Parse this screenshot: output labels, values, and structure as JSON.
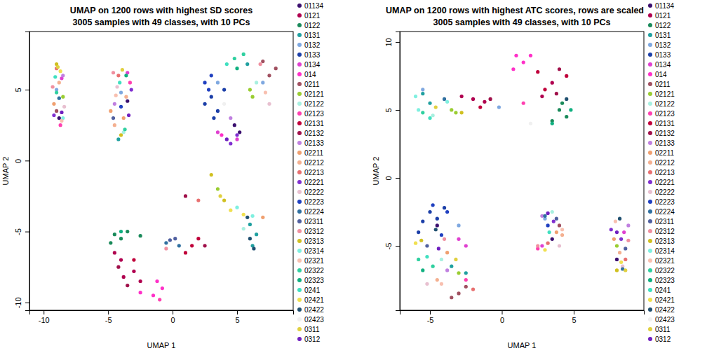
{
  "chart_data": [
    {
      "type": "scatter",
      "title": "UMAP on 1200 rows with highest SD scores",
      "subtitle": "3005 samples with 49 classes, with 10 PCs",
      "xlabel": "UMAP 1",
      "ylabel": "UMAP 2",
      "xlim": [
        -11.1,
        9.35
      ],
      "ylim": [
        -10.55,
        9.1
      ],
      "xticks": [
        -10,
        -5,
        0,
        5
      ],
      "yticks": [
        -10,
        -5,
        0,
        5
      ],
      "marker": "circle",
      "series": [
        {
          "name": "01134",
          "color": "#3b0f6f",
          "x": [
            4.8,
            5.2,
            -3.5,
            -8.8
          ],
          "y": [
            2.5,
            2.0,
            4.2,
            3.0
          ]
        },
        {
          "name": "0121",
          "color": "#b0004f",
          "x": [
            -4.0,
            -3.0,
            -4.5,
            -2.5,
            -3.8
          ],
          "y": [
            -7.0,
            -7.8,
            -6.5,
            -8.5,
            -8.2
          ]
        },
        {
          "name": "0122",
          "color": "#1a8a5a",
          "x": [
            -4.5,
            -3.5,
            -2.5,
            -4.8,
            -4.0
          ],
          "y": [
            -5.2,
            -5.0,
            -5.3,
            -5.8,
            -5.5
          ]
        },
        {
          "name": "0131",
          "color": "#20a0a0",
          "x": [
            6.0,
            6.5,
            5.8,
            -4.2,
            6.2
          ],
          "y": [
            -4.5,
            -5.2,
            6.8,
            1.5,
            -6.0
          ]
        },
        {
          "name": "0132",
          "color": "#7fa8e0",
          "x": [
            3.5,
            -9.0,
            -4.0,
            7.0
          ],
          "y": [
            5.5,
            5.0,
            4.8,
            5.5
          ]
        },
        {
          "name": "0133",
          "color": "#1c3fa8",
          "x": [
            3.0,
            2.5,
            3.5,
            4.0,
            3.2
          ],
          "y": [
            4.5,
            4.0,
            3.5,
            5.0,
            3.0
          ]
        },
        {
          "name": "0134",
          "color": "#e040d0",
          "x": [
            -3.5,
            -8.6,
            5.0,
            3.5
          ],
          "y": [
            6.2,
            5.8,
            1.5,
            2.0
          ]
        },
        {
          "name": "014",
          "color": "#ff30c8",
          "x": [
            -1.5,
            -0.8,
            -2.5,
            -1.2,
            3.8
          ],
          "y": [
            -9.5,
            -9.0,
            -9.3,
            -8.5,
            1.8
          ]
        },
        {
          "name": "0211",
          "color": "#a05060",
          "x": [
            7.5,
            8.0,
            7.0,
            -9.0
          ],
          "y": [
            6.0,
            6.5,
            7.0,
            3.5
          ]
        },
        {
          "name": "02121",
          "color": "#9acd32",
          "x": [
            6.0,
            6.2,
            3.5,
            -8.5
          ],
          "y": [
            5.0,
            4.5,
            -2.0,
            4.5
          ]
        },
        {
          "name": "02122",
          "color": "#a8f0e0",
          "x": [
            5.5,
            -3.8,
            6.5
          ],
          "y": [
            -4.8,
            2.0,
            5.5
          ]
        },
        {
          "name": "02123",
          "color": "#ff40b0",
          "x": [
            -1.0,
            -3.3,
            -8.7
          ],
          "y": [
            -9.8,
            5.5,
            2.5
          ]
        },
        {
          "name": "02131",
          "color": "#c0003a",
          "x": [
            1.5,
            2.0,
            -3.0,
            1.0
          ],
          "y": [
            -6.0,
            -5.5,
            -7.0,
            -6.5
          ]
        },
        {
          "name": "02132",
          "color": "#a0104a",
          "x": [
            2.5,
            -4.2,
            1.0,
            -3.5
          ],
          "y": [
            -6.0,
            -7.5,
            -2.5,
            -8.8
          ]
        },
        {
          "name": "02133",
          "color": "#c080e0",
          "x": [
            -8.5,
            4.5,
            -4.5
          ],
          "y": [
            6.0,
            3.0,
            4.0
          ]
        },
        {
          "name": "02211",
          "color": "#f0a070",
          "x": [
            -4.8,
            -9.2,
            -3.8,
            7.0
          ],
          "y": [
            3.5,
            4.0,
            3.0,
            -4.0
          ]
        },
        {
          "name": "02212",
          "color": "#f4b090",
          "x": [
            -4.5,
            -8.8,
            -3.6
          ],
          "y": [
            2.5,
            5.5,
            4.5
          ]
        },
        {
          "name": "02213",
          "color": "#e87070",
          "x": [
            -9.0,
            -4.2,
            2.0
          ],
          "y": [
            6.5,
            6.0,
            -2.8
          ]
        },
        {
          "name": "02221",
          "color": "#8030d0",
          "x": [
            4.5,
            5.0,
            -9.2,
            -3.2
          ],
          "y": [
            1.2,
            1.8,
            3.2,
            5.0
          ]
        },
        {
          "name": "02222",
          "color": "#e8c0d0",
          "x": [
            -8.4,
            -4.3,
            7.5
          ],
          "y": [
            3.8,
            5.2,
            4.0
          ]
        },
        {
          "name": "02223",
          "color": "#2040c0",
          "x": [
            2.8,
            3.0,
            -4.0,
            2.5
          ],
          "y": [
            5.0,
            6.0,
            3.8,
            5.5
          ]
        },
        {
          "name": "02224",
          "color": "#3070a0",
          "x": [
            -0.5,
            0.5,
            -8.8
          ],
          "y": [
            -5.8,
            -6.0,
            4.4
          ]
        },
        {
          "name": "02311",
          "color": "#5060a0",
          "x": [
            -0.2,
            0.2,
            -4.6
          ],
          "y": [
            -5.6,
            -5.5,
            3.0
          ]
        },
        {
          "name": "02312",
          "color": "#f090a0",
          "x": [
            -9.3,
            -4.6,
            -0.5,
            6.8
          ],
          "y": [
            5.2,
            6.2,
            -6.2,
            6.8
          ]
        },
        {
          "name": "02313",
          "color": "#d0c020",
          "x": [
            -9.0,
            3.0,
            4.0,
            -4.0
          ],
          "y": [
            6.8,
            -1.0,
            -2.8,
            1.8
          ]
        },
        {
          "name": "02314",
          "color": "#80f0e0",
          "x": [
            6.2,
            5.0,
            -8.5
          ],
          "y": [
            -3.9,
            -3.3,
            3.0
          ]
        },
        {
          "name": "02321",
          "color": "#f8c0b0",
          "x": [
            -8.6,
            -4.4,
            7.2
          ],
          "y": [
            2.8,
            4.6,
            4.8
          ]
        },
        {
          "name": "02322",
          "color": "#30d0a0",
          "x": [
            5.5,
            4.8,
            -9.0,
            -3.7
          ],
          "y": [
            7.5,
            7.2,
            4.8,
            2.2
          ]
        },
        {
          "name": "02323",
          "color": "#10b080",
          "x": [
            -3.6,
            5.0,
            -4.0
          ],
          "y": [
            6.0,
            6.5,
            -5.0
          ]
        },
        {
          "name": "0241",
          "color": "#40e0c0",
          "x": [
            -9.1,
            -4.1,
            4.2
          ],
          "y": [
            5.9,
            5.5,
            6.8
          ]
        },
        {
          "name": "02421",
          "color": "#f0e050",
          "x": [
            -8.7,
            4.5,
            5.5
          ],
          "y": [
            6.3,
            -3.5,
            -3.8
          ]
        },
        {
          "name": "02422",
          "color": "#205070",
          "x": [
            6.0,
            6.3,
            5.8
          ],
          "y": [
            -5.5,
            -6.2,
            -4.0
          ]
        },
        {
          "name": "02423",
          "color": "#f0f0f0",
          "x": [
            4.0
          ],
          "y": [
            4.0
          ]
        },
        {
          "name": "0311",
          "color": "#e0d040",
          "x": [
            -3.9,
            -8.9,
            3.7
          ],
          "y": [
            6.4,
            6.6,
            -2.5
          ]
        },
        {
          "name": "0312",
          "color": "#7020c0",
          "x": [
            4.2,
            -8.6,
            -3.4
          ],
          "y": [
            1.5,
            3.4,
            3.2
          ]
        }
      ]
    },
    {
      "type": "scatter",
      "title": "UMAP on 1200 rows with highest ATC scores, rows are scaled",
      "subtitle": "3005 samples with 49 classes, with 10 PCs",
      "xlabel": "UMAP 1",
      "ylabel": "UMAP 2",
      "xlim": [
        -7.1,
        9.88
      ],
      "ylim": [
        -9.74,
        10.77
      ],
      "xticks": [
        -5,
        0,
        5
      ],
      "yticks": [
        -5,
        0,
        5,
        10
      ],
      "marker": "circle",
      "series": [
        {
          "name": "01134",
          "color": "#3b0f6f",
          "x": [
            8.0,
            3.5,
            -4.5
          ],
          "y": [
            -6.0,
            -4.5,
            -3.5
          ]
        },
        {
          "name": "0121",
          "color": "#b0004f",
          "x": [
            -2.0,
            -1.2,
            3.5,
            2.8,
            -2.8
          ],
          "y": [
            5.8,
            5.6,
            7.0,
            6.0,
            6.0
          ]
        },
        {
          "name": "0122",
          "color": "#1a8a5a",
          "x": [
            4.0,
            4.5,
            3.5,
            4.2
          ],
          "y": [
            5.0,
            4.5,
            4.2,
            5.5
          ]
        },
        {
          "name": "0131",
          "color": "#20a0a0",
          "x": [
            -5.5,
            -5.0,
            -3.5,
            -2.5
          ],
          "y": [
            6.2,
            5.5,
            -6.5,
            -7.0
          ]
        },
        {
          "name": "0132",
          "color": "#7fa8e0",
          "x": [
            -3.0,
            -5.5,
            3.0,
            -0.2
          ],
          "y": [
            -3.5,
            6.5,
            -3.0,
            5.2
          ]
        },
        {
          "name": "0133",
          "color": "#1c3fa8",
          "x": [
            -5.0,
            -4.5,
            -5.5,
            -4.0,
            -5.8
          ],
          "y": [
            -2.5,
            -3.0,
            -3.2,
            -2.2,
            -4.0
          ]
        },
        {
          "name": "0134",
          "color": "#e040d0",
          "x": [
            -3.0,
            -2.5,
            2.8,
            8.5
          ],
          "y": [
            -4.5,
            -5.0,
            -5.0,
            -4.0
          ]
        },
        {
          "name": "014",
          "color": "#ff30c8",
          "x": [
            1.0,
            1.5,
            0.8,
            2.0
          ],
          "y": [
            9.0,
            8.5,
            8.0,
            9.0
          ]
        },
        {
          "name": "0211",
          "color": "#a05060",
          "x": [
            -3.0,
            -3.5,
            -2.5,
            4.0
          ],
          "y": [
            -8.5,
            -8.8,
            -8.0,
            -3.5
          ]
        },
        {
          "name": "02121",
          "color": "#9acd32",
          "x": [
            -3.5,
            -3.2,
            -3.0,
            8.0
          ],
          "y": [
            5.0,
            4.8,
            -7.0,
            -5.0
          ]
        },
        {
          "name": "02122",
          "color": "#a8f0e0",
          "x": [
            -4.8,
            -4.2,
            3.5
          ],
          "y": [
            4.6,
            -6.0,
            -2.5
          ]
        },
        {
          "name": "02123",
          "color": "#ff40b0",
          "x": [
            -2.5,
            1.5,
            2.5
          ],
          "y": [
            -7.5,
            5.5,
            -5.2
          ]
        },
        {
          "name": "02131",
          "color": "#c0003a",
          "x": [
            3.0,
            4.5,
            -1.5,
            2.5
          ],
          "y": [
            6.5,
            7.5,
            5.2,
            7.8
          ]
        },
        {
          "name": "02132",
          "color": "#a0104a",
          "x": [
            -0.8,
            4.0,
            3.8
          ],
          "y": [
            5.8,
            8.0,
            6.2
          ]
        },
        {
          "name": "02133",
          "color": "#c080e0",
          "x": [
            8.8,
            2.8,
            -3.8
          ],
          "y": [
            -3.5,
            -2.8,
            -6.8
          ]
        },
        {
          "name": "02211",
          "color": "#f0a070",
          "x": [
            3.8,
            7.8,
            -3.8
          ],
          "y": [
            -4.0,
            -4.5,
            -5.5
          ]
        },
        {
          "name": "02212",
          "color": "#f4b090",
          "x": [
            4.2,
            8.2,
            -4.5
          ],
          "y": [
            -4.2,
            -5.5,
            -7.5
          ]
        },
        {
          "name": "02213",
          "color": "#e87070",
          "x": [
            8.6,
            3.2,
            -2.0
          ],
          "y": [
            -6.0,
            -4.8,
            -8.2
          ]
        },
        {
          "name": "02221",
          "color": "#8030d0",
          "x": [
            8.3,
            3.6,
            7.6
          ],
          "y": [
            -4.5,
            -3.2,
            -3.8
          ]
        },
        {
          "name": "02222",
          "color": "#e8c0d0",
          "x": [
            8.4,
            4.0,
            -5.2
          ],
          "y": [
            -6.5,
            -5.0,
            -7.8
          ]
        },
        {
          "name": "02223",
          "color": "#2040c0",
          "x": [
            -4.8,
            -3.8,
            3.2,
            -4.2
          ],
          "y": [
            -2.0,
            -2.5,
            -3.5,
            -4.2
          ]
        },
        {
          "name": "02224",
          "color": "#3070a0",
          "x": [
            3.0,
            8.4,
            -4.0
          ],
          "y": [
            -2.8,
            -6.7,
            5.8
          ]
        },
        {
          "name": "02311",
          "color": "#5060a0",
          "x": [
            3.8,
            8.6,
            -5.2
          ],
          "y": [
            -3.0,
            -5.2,
            -5.0
          ]
        },
        {
          "name": "02312",
          "color": "#f090a0",
          "x": [
            2.5,
            8.8,
            -4.0
          ],
          "y": [
            -5.0,
            -4.6,
            -4.5
          ]
        },
        {
          "name": "02313",
          "color": "#d0c020",
          "x": [
            8.0,
            -5.6,
            -2.8
          ],
          "y": [
            -6.8,
            -4.6,
            4.8
          ]
        },
        {
          "name": "02314",
          "color": "#80f0e0",
          "x": [
            -6.0,
            -5.8,
            -3.8
          ],
          "y": [
            6.0,
            5.0,
            5.6
          ]
        },
        {
          "name": "02321",
          "color": "#f8c0b0",
          "x": [
            -4.2,
            4.2,
            7.9
          ],
          "y": [
            -7.8,
            -3.8,
            -3.2
          ]
        },
        {
          "name": "02322",
          "color": "#30d0a0",
          "x": [
            -5.8,
            -4.8,
            -5.5
          ],
          "y": [
            -6.0,
            -6.5,
            4.8
          ]
        },
        {
          "name": "02323",
          "color": "#10b080",
          "x": [
            3.5,
            4.8,
            -5.5
          ],
          "y": [
            4.0,
            5.0,
            -6.8
          ]
        },
        {
          "name": "0241",
          "color": "#40e0c0",
          "x": [
            -5.2,
            -5.0,
            3.3
          ],
          "y": [
            -5.8,
            4.4,
            -4.0
          ]
        },
        {
          "name": "02421",
          "color": "#f0e050",
          "x": [
            8.3,
            -6.0,
            3.0
          ],
          "y": [
            -6.2,
            -4.8,
            -5.3
          ]
        },
        {
          "name": "02422",
          "color": "#205070",
          "x": [
            4.5,
            8.2,
            -4.6
          ],
          "y": [
            5.8,
            -3.0,
            -3.8
          ]
        },
        {
          "name": "02423",
          "color": "#f0f0f0",
          "x": [
            2.0
          ],
          "y": [
            4.0
          ]
        },
        {
          "name": "0311",
          "color": "#e0d040",
          "x": [
            -4.6,
            8.6,
            -3.2
          ],
          "y": [
            5.2,
            -6.8,
            -6.0
          ]
        },
        {
          "name": "0312",
          "color": "#7020c0",
          "x": [
            3.2,
            8.0,
            -4.4
          ],
          "y": [
            -2.6,
            -4.0,
            -5.2
          ]
        }
      ]
    }
  ]
}
